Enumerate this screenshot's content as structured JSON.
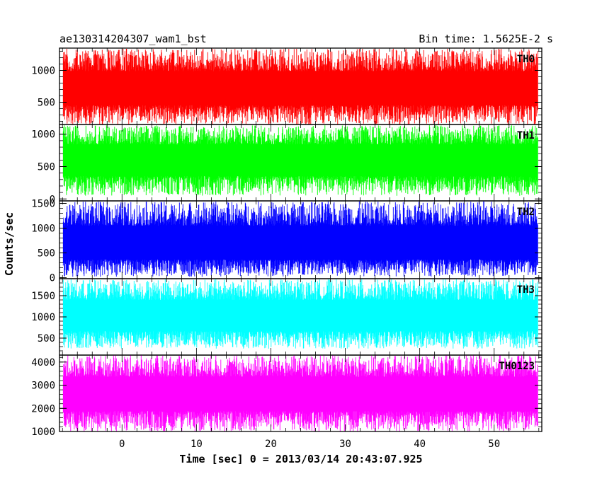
{
  "chart_data": {
    "type": "line",
    "title_left": "ae130314204307_wam1_bst",
    "title_right": "Bin time: 1.5625E-2 s",
    "xlabel": "Time [sec] 0 = 2013/03/14 20:43:07.925",
    "ylabel": "Counts/sec",
    "xlim": [
      -8.4,
      56.4
    ],
    "x_data_range": [
      -7.9,
      55.9
    ],
    "x_ticks": [
      0,
      10,
      20,
      30,
      40,
      50
    ],
    "x_tick_labels": [
      "0",
      "10",
      "20",
      "30",
      "40",
      "50"
    ],
    "grid": false,
    "series": [
      {
        "name": "TH0",
        "color": "#ff0000",
        "ylim": [
          150,
          1350
        ],
        "y_ticks": [
          500,
          1000
        ],
        "y_tick_labels": [
          "500",
          "1000"
        ],
        "mean": 700,
        "noise_min": 150,
        "noise_max": 1340
      },
      {
        "name": "TH1",
        "color": "#00ff00",
        "ylim": [
          -30,
          1150
        ],
        "y_ticks": [
          0,
          500,
          1000
        ],
        "y_tick_labels": [
          "0",
          "500",
          "1000"
        ],
        "mean": 600,
        "noise_min": 50,
        "noise_max": 1140
      },
      {
        "name": "TH2",
        "color": "#0000ff",
        "ylim": [
          -20,
          1550
        ],
        "y_ticks": [
          0,
          500,
          1000,
          1500
        ],
        "y_tick_labels": [
          "0",
          "500",
          "1000",
          "1500"
        ],
        "mean": 650,
        "noise_min": 20,
        "noise_max": 1540
      },
      {
        "name": "TH3",
        "color": "#00ffff",
        "ylim": [
          100,
          1900
        ],
        "y_ticks": [
          500,
          1000,
          1500
        ],
        "y_tick_labels": [
          "500",
          "1000",
          "1500"
        ],
        "mean": 1000,
        "noise_min": 250,
        "noise_max": 1890
      },
      {
        "name": "TH0123",
        "color": "#ff00ff",
        "ylim": [
          1000,
          4300
        ],
        "y_ticks": [
          1000,
          2000,
          3000,
          4000
        ],
        "y_tick_labels": [
          "1000",
          "2000",
          "3000",
          "4000"
        ],
        "mean": 2600,
        "noise_min": 1000,
        "noise_max": 4300
      }
    ]
  }
}
